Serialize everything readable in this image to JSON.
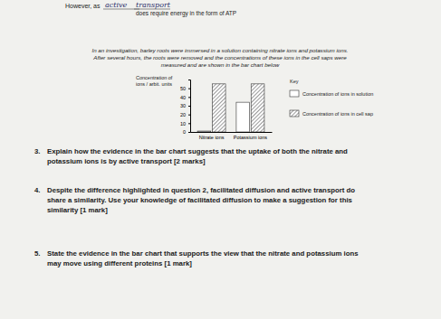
{
  "header": {
    "prefix": "However, as",
    "handwritten": [
      "active",
      "transport"
    ],
    "suffix": "does require energy in the form of ATP"
  },
  "intro": [
    "In an investigation, barley roots were immersed in a solution containing nitrate ions and potassium ions.",
    "After several hours, the roots were removed and the concentrations of these ions in the cell saps were",
    "measured and are shown in the bar chart below"
  ],
  "chart_data": {
    "type": "bar",
    "y_label": [
      "Concentration of",
      "ions / arbit. units"
    ],
    "categories": [
      "Nitrate ions",
      "Potassium ions"
    ],
    "series": [
      {
        "name": "Concentration of ions in solution",
        "color": "#ffffff",
        "values": [
          1,
          34
        ]
      },
      {
        "name": "Concentration of ions in cell sap",
        "color": "#555555",
        "values": [
          55,
          55
        ]
      }
    ],
    "ylim": [
      0,
      60
    ],
    "yticks": [
      0,
      10,
      20,
      30,
      40,
      50
    ],
    "grid": false,
    "legend": "right",
    "legend_title": "Key"
  },
  "questions": [
    {
      "number": "3.",
      "lines": [
        "Explain how the evidence in the bar chart suggests that the uptake of both the nitrate and",
        "potassium ions is by active transport [2 marks]"
      ]
    },
    {
      "number": "4.",
      "lines": [
        "Despite the difference highlighted in question 2, facilitated diffusion and active transport do",
        "share a similarity.  Use your knowledge of facilitated diffusion to make a suggestion for this",
        "similarity [1 mark]"
      ]
    },
    {
      "number": "5.",
      "lines": [
        "State the evidence in the bar chart that supports the view that the nitrate and potassium ions",
        "may move using different proteins [1 mark]"
      ]
    }
  ]
}
